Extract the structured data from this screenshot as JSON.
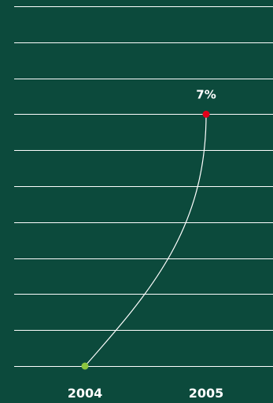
{
  "colors": {
    "background": "#0c4a3c",
    "gridline": "#ffffff",
    "line": "#ffffff",
    "point_start": "#8cc63f",
    "point_end": "#e2001a",
    "text": "#ffffff"
  },
  "chart_data": {
    "type": "line",
    "title": "",
    "xlabel": "",
    "ylabel": "",
    "categories": [
      "2004",
      "2005"
    ],
    "series": [
      {
        "values": [
          0,
          7
        ]
      }
    ],
    "data_labels": [
      "",
      "7%"
    ],
    "ylim": [
      0,
      10
    ],
    "grid": true,
    "legend": "none"
  }
}
